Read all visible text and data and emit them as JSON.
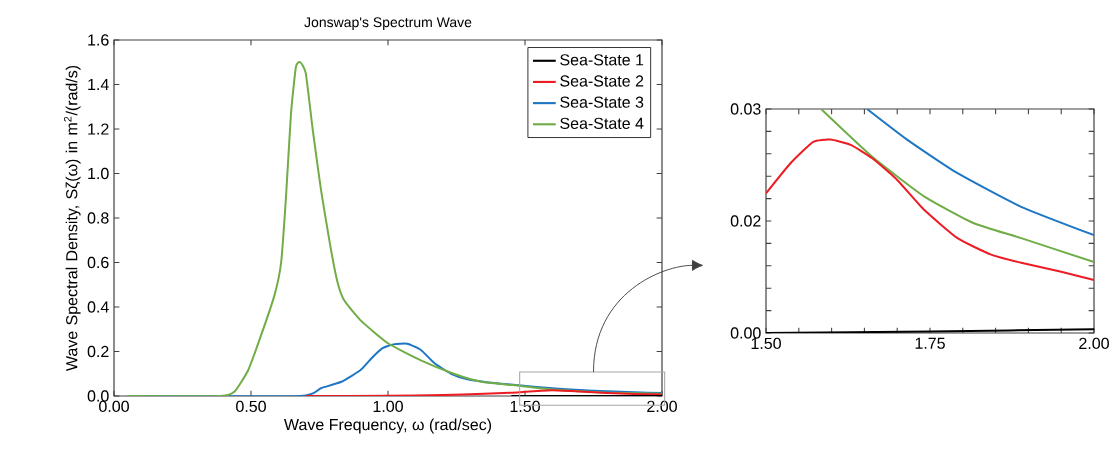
{
  "chart_data": [
    {
      "type": "line",
      "title": "Jonswap's Spectrum Wave",
      "xlabel": "Wave Frequency, ω (rad/sec)",
      "ylabel": "Wave Spectral Density, Sζ(ω) in m$^{2}$/(rad/s)",
      "xlim": [
        0,
        2
      ],
      "ylim": [
        0,
        1.6
      ],
      "xticks": [
        {
          "value": 0,
          "label": "0.00"
        },
        {
          "value": 0.5,
          "label": "0.50"
        },
        {
          "value": 1,
          "label": "1.00"
        },
        {
          "value": 1.5,
          "label": "1.50"
        },
        {
          "value": 2,
          "label": "2.00"
        }
      ],
      "yticks": [
        {
          "value": 0,
          "label": "0.0"
        },
        {
          "value": 0.2,
          "label": "0.2"
        },
        {
          "value": 0.4,
          "label": "0.4"
        },
        {
          "value": 0.6,
          "label": "0.6"
        },
        {
          "value": 0.8,
          "label": "0.8"
        },
        {
          "value": 1.0,
          "label": "1.0"
        },
        {
          "value": 1.2,
          "label": "1.2"
        },
        {
          "value": 1.4,
          "label": "1.4"
        },
        {
          "value": 1.6,
          "label": "1.6"
        }
      ],
      "legend": "top right",
      "grid": false,
      "marker": "none",
      "line_style": "solid",
      "series": [
        {
          "name": "Sea-State 1",
          "color": "#000000",
          "x": [
            1.45,
            1.75,
            2.0
          ],
          "values": [
            0,
            0,
            0
          ]
        },
        {
          "name": "Sea-State 2",
          "color": "#ed1c24",
          "x": [
            0.7,
            1.0,
            1.2,
            1.35,
            1.45,
            1.5,
            1.6,
            1.7,
            1.8,
            1.9,
            2.0
          ],
          "values": [
            0,
            0.001,
            0.004,
            0.01,
            0.015,
            0.019,
            0.026,
            0.02,
            0.013,
            0.009,
            0.007
          ]
        },
        {
          "name": "Sea-State 3",
          "color": "#1f77c4",
          "x": [
            0.05,
            0.68,
            0.755,
            0.83,
            0.9,
            0.94,
            0.98,
            1.02,
            1.07,
            1.12,
            1.17,
            1.23,
            1.29,
            1.36,
            1.485,
            1.6,
            1.7,
            1.8,
            1.9,
            2.0
          ],
          "values": [
            0,
            0,
            0.035,
            0.064,
            0.117,
            0.17,
            0.215,
            0.232,
            0.235,
            0.207,
            0.147,
            0.1,
            0.075,
            0.062,
            0.047,
            0.035,
            0.027,
            0.021,
            0.017,
            0.013
          ]
        },
        {
          "name": "Sea-State 4",
          "color": "#70ad47",
          "x": [
            0.05,
            0.39,
            0.44,
            0.49,
            0.536,
            0.585,
            0.61,
            0.628,
            0.646,
            0.664,
            0.68,
            0.7,
            0.725,
            0.755,
            0.79,
            0.816,
            0.84,
            0.9,
            1.0,
            1.12,
            1.24,
            1.34,
            1.485,
            1.6,
            1.7,
            1.8,
            1.9,
            2.0
          ],
          "values": [
            0,
            0,
            0.02,
            0.117,
            0.27,
            0.45,
            0.6,
            0.9,
            1.27,
            1.48,
            1.5,
            1.45,
            1.2,
            0.93,
            0.67,
            0.51,
            0.43,
            0.34,
            0.237,
            0.16,
            0.1,
            0.064,
            0.045,
            0.029,
            0.021,
            0.015,
            0.012,
            0.01
          ]
        }
      ]
    },
    {
      "type": "line",
      "xlim": [
        1.5,
        2
      ],
      "ylim": [
        0,
        0.03
      ],
      "xticks": [
        {
          "value": 1.5,
          "label": "1.50"
        },
        {
          "value": 1.55,
          "label": null
        },
        {
          "value": 1.6,
          "label": null
        },
        {
          "value": 1.65,
          "label": null
        },
        {
          "value": 1.7,
          "label": null
        },
        {
          "value": 1.75,
          "label": "1.75"
        },
        {
          "value": 1.8,
          "label": null
        },
        {
          "value": 1.85,
          "label": null
        },
        {
          "value": 1.9,
          "label": null
        },
        {
          "value": 1.95,
          "label": null
        },
        {
          "value": 2,
          "label": "2.00"
        }
      ],
      "yticks": [
        {
          "value": 0,
          "label": "0.00"
        },
        {
          "value": 0.003,
          "label": null
        },
        {
          "value": 0.006,
          "label": null
        },
        {
          "value": 0.009,
          "label": null
        },
        {
          "value": 0.012,
          "label": null
        },
        {
          "value": 0.015,
          "label": "0.02"
        },
        {
          "value": 0.018,
          "label": null
        },
        {
          "value": 0.021,
          "label": null
        },
        {
          "value": 0.024,
          "label": null
        },
        {
          "value": 0.027,
          "label": null
        },
        {
          "value": 0.03,
          "label": "0.03"
        }
      ],
      "legend": false,
      "grid": false,
      "marker": "none",
      "line_style": "solid",
      "series": [
        {
          "color": "#000000",
          "x": [
            1.5,
            1.75,
            2.0
          ],
          "values": [
            0,
            0.0002,
            0.0005
          ]
        },
        {
          "color": "#ed1c24",
          "x": [
            1.5,
            1.537,
            1.572,
            1.598,
            1.629,
            1.662,
            1.7,
            1.741,
            1.792,
            1.843,
            1.889,
            1.95,
            2.0
          ],
          "values": [
            0.0187,
            0.0227,
            0.0256,
            0.0259,
            0.0252,
            0.0234,
            0.0205,
            0.0165,
            0.0127,
            0.0105,
            0.0094,
            0.0082,
            0.0071
          ]
        },
        {
          "color": "#1f77c4",
          "x": [
            1.654,
            1.715,
            1.792,
            1.889,
            2.0
          ],
          "values": [
            0.03,
            0.0259,
            0.0214,
            0.0169,
            0.0131
          ]
        },
        {
          "color": "#70ad47",
          "x": [
            1.584,
            1.662,
            1.741,
            1.817,
            1.889,
            2.0
          ],
          "values": [
            0.03,
            0.0236,
            0.0183,
            0.0147,
            0.0127,
            0.0095
          ]
        }
      ]
    }
  ]
}
